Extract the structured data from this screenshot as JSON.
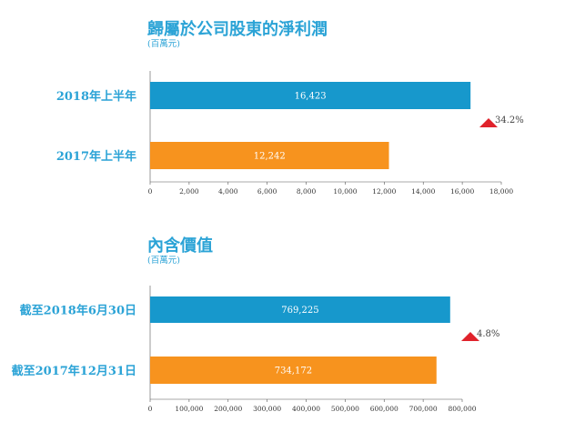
{
  "colors": {
    "current": "#1798cc",
    "previous": "#f7931e",
    "accent": "#2ba3d6",
    "up_arrow": "#e0222b"
  },
  "chart_data": [
    {
      "type": "bar",
      "orientation": "horizontal",
      "title": "歸屬於公司股東的淨利潤",
      "subtitle": "(百萬元)",
      "categories": [
        "2018年上半年",
        "2017年上半年"
      ],
      "values": [
        16423,
        12242
      ],
      "value_labels": [
        "16,423",
        "12,242"
      ],
      "xlim": [
        0,
        18000
      ],
      "ticks": [
        0,
        2000,
        4000,
        6000,
        8000,
        10000,
        12000,
        14000,
        16000,
        18000
      ],
      "tick_labels": [
        "0",
        "2,000",
        "4,000",
        "6,000",
        "8,000",
        "10,000",
        "12,000",
        "14,000",
        "16,000",
        "18,000"
      ],
      "change_label": "34.2%",
      "grid": false
    },
    {
      "type": "bar",
      "orientation": "horizontal",
      "title": "內含價值",
      "subtitle": "(百萬元)",
      "categories": [
        "截至2018年6月30日",
        "截至2017年12月31日"
      ],
      "values": [
        769225,
        734172
      ],
      "value_labels": [
        "769,225",
        "734,172"
      ],
      "xlim": [
        0,
        800000
      ],
      "ticks": [
        0,
        100000,
        200000,
        300000,
        400000,
        500000,
        600000,
        700000,
        800000
      ],
      "tick_labels": [
        "0",
        "100,000",
        "200,000",
        "300,000",
        "400,000",
        "500,000",
        "600,000",
        "700,000",
        "800,000"
      ],
      "change_label": "4.8%",
      "grid": false
    }
  ]
}
